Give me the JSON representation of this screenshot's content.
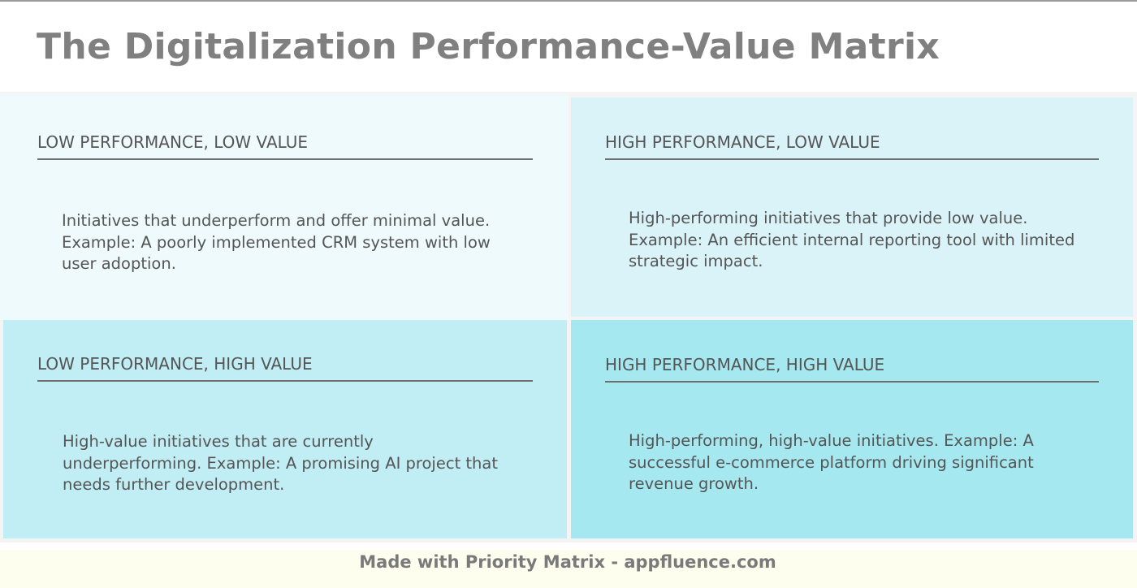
{
  "title": "The Digitalization Performance-Value Matrix",
  "colors": {
    "title_text": "#808080",
    "body_text": "#555555",
    "heading_rule": "#6f6f6f",
    "matrix_background": "#f4f4f4",
    "footer_background": "#fdfeee"
  },
  "quadrants": [
    {
      "position": "top-left",
      "heading": "LOW PERFORMANCE, LOW VALUE",
      "description": "Initiatives that underperform and offer minimal value. Example: A poorly implemented CRM system with low user adoption.",
      "background": "#eefafc"
    },
    {
      "position": "top-right",
      "heading": "HIGH PERFORMANCE, LOW VALUE",
      "description": "High-performing initiatives that provide low value. Example: An efficient internal reporting tool with limited strategic impact.",
      "background": "#d9f3f8"
    },
    {
      "position": "bottom-left",
      "heading": "LOW PERFORMANCE, HIGH VALUE",
      "description": "High-value initiatives that are currently underperforming. Example: A promising AI project that needs further development.",
      "background": "#c1edf4"
    },
    {
      "position": "bottom-right",
      "heading": "HIGH PERFORMANCE, HIGH VALUE",
      "description": "High-performing, high-value initiatives. Example: A successful e-commerce platform driving significant revenue growth.",
      "background": "#a5e8f0"
    }
  ],
  "footer": {
    "text": "Made with Priority Matrix - appfluence.com"
  }
}
